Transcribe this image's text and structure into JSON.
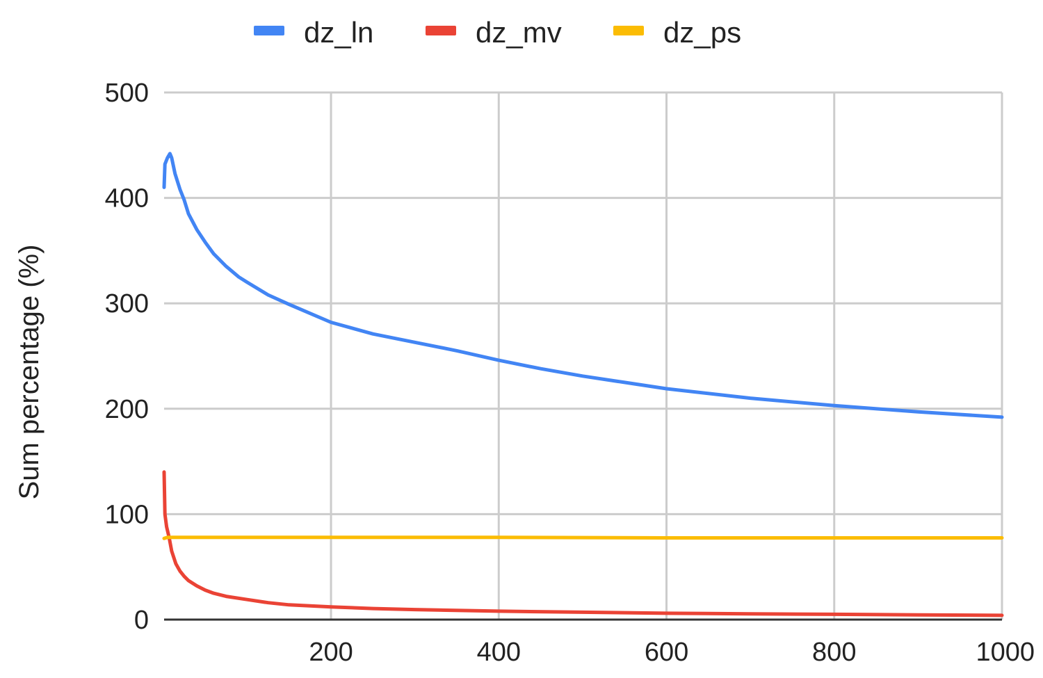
{
  "chart_data": {
    "type": "line",
    "title": "",
    "xlabel": "",
    "ylabel": "Sum percentage (%)",
    "xlim": [
      1,
      1000
    ],
    "ylim": [
      0,
      500
    ],
    "x_ticks": [
      200,
      400,
      600,
      800,
      1000
    ],
    "y_ticks": [
      0,
      100,
      200,
      300,
      400,
      500
    ],
    "grid": true,
    "legend_position": "top",
    "series": [
      {
        "name": "dz_ln",
        "color": "#4285F4",
        "points": [
          [
            1,
            410
          ],
          [
            2,
            432
          ],
          [
            5,
            438
          ],
          [
            8,
            442
          ],
          [
            10,
            438
          ],
          [
            14,
            423
          ],
          [
            20,
            408
          ],
          [
            25,
            398
          ],
          [
            30,
            385
          ],
          [
            40,
            370
          ],
          [
            50,
            358
          ],
          [
            60,
            347
          ],
          [
            75,
            335
          ],
          [
            90,
            325
          ],
          [
            100,
            320
          ],
          [
            125,
            308
          ],
          [
            150,
            299
          ],
          [
            200,
            282
          ],
          [
            250,
            271
          ],
          [
            300,
            263
          ],
          [
            350,
            255
          ],
          [
            400,
            246
          ],
          [
            450,
            238
          ],
          [
            500,
            231
          ],
          [
            550,
            225
          ],
          [
            600,
            219
          ],
          [
            700,
            210
          ],
          [
            800,
            203
          ],
          [
            900,
            197
          ],
          [
            1000,
            192
          ]
        ]
      },
      {
        "name": "dz_mv",
        "color": "#EA4335",
        "points": [
          [
            1,
            140
          ],
          [
            2,
            100
          ],
          [
            4,
            88
          ],
          [
            7,
            78
          ],
          [
            10,
            65
          ],
          [
            15,
            53
          ],
          [
            20,
            46
          ],
          [
            25,
            41
          ],
          [
            30,
            37
          ],
          [
            40,
            32
          ],
          [
            50,
            28
          ],
          [
            60,
            25
          ],
          [
            75,
            22
          ],
          [
            100,
            19
          ],
          [
            125,
            16
          ],
          [
            150,
            14
          ],
          [
            200,
            12
          ],
          [
            250,
            10.5
          ],
          [
            300,
            9.5
          ],
          [
            400,
            8
          ],
          [
            500,
            7
          ],
          [
            600,
            6
          ],
          [
            700,
            5.5
          ],
          [
            800,
            5
          ],
          [
            900,
            4.5
          ],
          [
            1000,
            4
          ]
        ]
      },
      {
        "name": "dz_ps",
        "color": "#FBBC04",
        "points": [
          [
            1,
            77
          ],
          [
            5,
            78
          ],
          [
            20,
            78
          ],
          [
            100,
            78
          ],
          [
            200,
            78
          ],
          [
            400,
            78
          ],
          [
            600,
            77.5
          ],
          [
            800,
            77.5
          ],
          [
            1000,
            77.5
          ]
        ]
      }
    ]
  }
}
